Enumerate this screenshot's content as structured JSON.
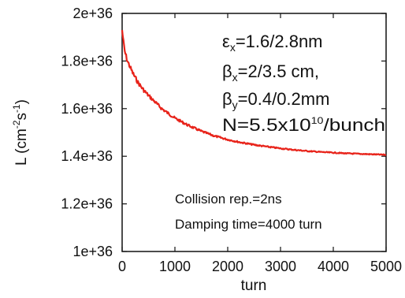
{
  "chart_data": {
    "type": "line",
    "title": "",
    "xlabel": "turn",
    "ylabel": {
      "base": "L (cm",
      "exp1": "-2",
      "mid": "s",
      "exp2": "-1",
      "end": ")"
    },
    "xlim": [
      0,
      5000
    ],
    "ylim": [
      1e+36,
      2e+36
    ],
    "x_ticks": [
      0,
      1000,
      2000,
      3000,
      4000,
      5000
    ],
    "x_tick_labels": [
      "0",
      "1000",
      "2000",
      "3000",
      "4000",
      "5000"
    ],
    "y_ticks": [
      1e+36,
      1.2e+36,
      1.4e+36,
      1.6e+36,
      1.8e+36,
      2e+36
    ],
    "y_tick_labels": [
      "1e+36",
      "1.2e+36",
      "1.4e+36",
      "1.6e+36",
      "1.8e+36",
      "2e+36"
    ],
    "grid": false,
    "series": [
      {
        "color": "#e8231a",
        "x": [
          0,
          25,
          50,
          100,
          200,
          300,
          400,
          500,
          750,
          1000,
          1250,
          1500,
          1750,
          2000,
          2250,
          2500,
          2750,
          3000,
          3250,
          3500,
          3750,
          4000,
          4250,
          4500,
          4750,
          5000
        ],
        "y": [
          1.93e+36,
          1.88e+36,
          1.84e+36,
          1.8e+36,
          1.75e+36,
          1.71e+36,
          1.68e+36,
          1.655e+36,
          1.6e+36,
          1.56e+36,
          1.53e+36,
          1.505e+36,
          1.485e+36,
          1.47e+36,
          1.458e+36,
          1.448e+36,
          1.44e+36,
          1.433e+36,
          1.427e+36,
          1.422e+36,
          1.418e+36,
          1.415e+36,
          1.412e+36,
          1.41e+36,
          1.408e+36,
          1.406e+36
        ]
      }
    ]
  },
  "annotations": {
    "params": [
      {
        "sym": "ε",
        "sub": "x",
        "text": "=1.6/2.8nm"
      },
      {
        "sym": "β",
        "sub": "x",
        "text": "=2/3.5 cm,"
      },
      {
        "sym": "β",
        "sub": "y",
        "text": "=0.4/0.2mm"
      }
    ],
    "bunch": {
      "pre": "N=5.5x10",
      "exp": "10",
      "post": "/bunch"
    },
    "notes": [
      "Collision rep.=2ns",
      "Damping time=4000 turn"
    ]
  }
}
